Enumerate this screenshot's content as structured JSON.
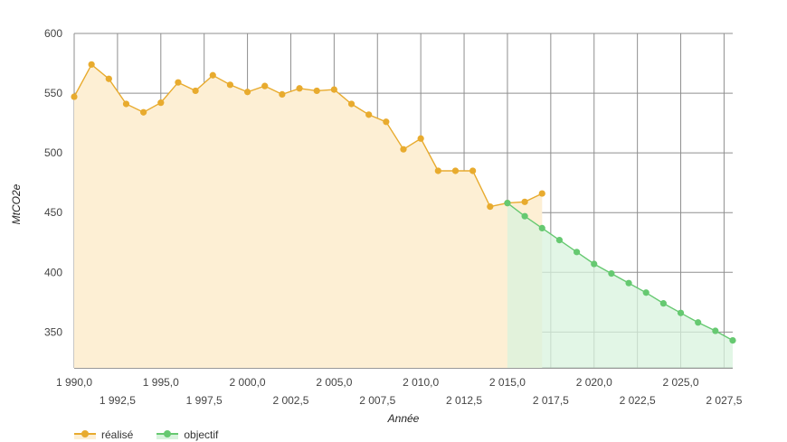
{
  "chart_data": {
    "type": "area",
    "xlabel": "Année",
    "ylabel": "MtCO2e",
    "xlim": [
      1990,
      2028
    ],
    "ylim": [
      320,
      600
    ],
    "x_ticks_top_row": [
      "1 990,0",
      "1 995,0",
      "2 000,0",
      "2 005,0",
      "2 010,0",
      "2 015,0",
      "2 020,0",
      "2 025,0"
    ],
    "x_ticks_bottom_row": [
      "1 992,5",
      "1 997,5",
      "2 002,5",
      "2 007,5",
      "2 012,5",
      "2 017,5",
      "2 022,5",
      "2 027,5"
    ],
    "y_ticks": [
      "600",
      "550",
      "500",
      "450",
      "400",
      "350"
    ],
    "grid": true,
    "legend_position": "bottom-left",
    "series": [
      {
        "name": "réalisé",
        "color": "#e8ab2e",
        "fill": "#fdefd4",
        "x": [
          1990,
          1991,
          1992,
          1993,
          1994,
          1995,
          1996,
          1997,
          1998,
          1999,
          2000,
          2001,
          2002,
          2003,
          2004,
          2005,
          2006,
          2007,
          2008,
          2009,
          2010,
          2011,
          2012,
          2013,
          2014,
          2015,
          2016,
          2017
        ],
        "values": [
          547,
          574,
          562,
          541,
          534,
          542,
          559,
          552,
          565,
          557,
          551,
          556,
          549,
          554,
          552,
          553,
          541,
          532,
          526,
          503,
          512,
          485,
          485,
          485,
          455,
          458,
          459,
          466
        ]
      },
      {
        "name": "objectif",
        "color": "#66c971",
        "fill": "#d8f3dd",
        "x": [
          2015,
          2016,
          2017,
          2018,
          2019,
          2020,
          2021,
          2022,
          2023,
          2024,
          2025,
          2026,
          2027,
          2028
        ],
        "values": [
          458,
          447,
          437,
          427,
          417,
          407,
          399,
          391,
          383,
          374,
          366,
          358,
          351,
          343
        ]
      }
    ]
  }
}
